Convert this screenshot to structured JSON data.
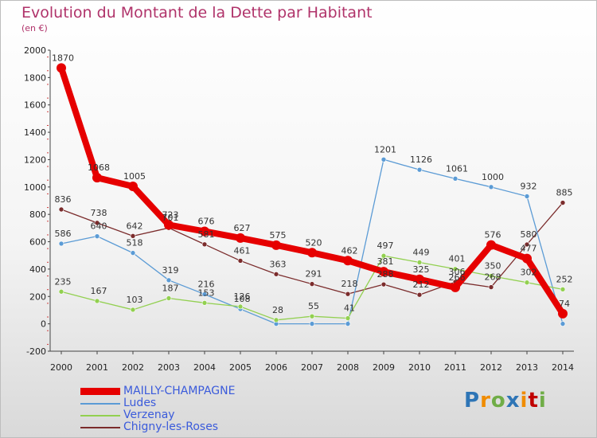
{
  "title": "Evolution du Montant de la Dette par Habitant",
  "subtitle": "(en €)",
  "brand": "Proxiti",
  "colors": {
    "title": "#b0336a",
    "MAILLY-CHAMPAGNE": "#e60000",
    "Ludes": "#5b9bd5",
    "Verzenay": "#92d050",
    "Chigny-les-Roses": "#7b2c2c"
  },
  "chart_data": {
    "type": "line",
    "title": "Evolution du Montant de la Dette par Habitant",
    "subtitle": "(en €)",
    "x": [
      "2000",
      "2001",
      "2002",
      "2003",
      "2004",
      "2005",
      "2006",
      "2007",
      "2008",
      "2009",
      "2010",
      "2011",
      "2012",
      "2013",
      "2014"
    ],
    "ylim": [
      -200,
      2000
    ],
    "yticks": [
      -200,
      0,
      200,
      400,
      600,
      800,
      1000,
      1200,
      1400,
      1600,
      1800,
      2000
    ],
    "grid": false,
    "legend": "bottom-left",
    "series": [
      {
        "name": "Chigny-les-Roses",
        "values": [
          836,
          738,
          642,
          701,
          581,
          461,
          363,
          291,
          218,
          288,
          212,
          306,
          268,
          580,
          885
        ]
      },
      {
        "name": "Ludes",
        "values": [
          586,
          640,
          518,
          319,
          216,
          108,
          0,
          0,
          0,
          1201,
          1126,
          1061,
          1000,
          932,
          0
        ]
      },
      {
        "name": "Verzenay",
        "values": [
          235,
          167,
          103,
          187,
          153,
          126,
          28,
          55,
          41,
          497,
          449,
          401,
          350,
          302,
          252
        ]
      },
      {
        "name": "MAILLY-CHAMPAGNE",
        "values": [
          1870,
          1068,
          1005,
          723,
          676,
          627,
          575,
          520,
          462,
          381,
          325,
          266,
          576,
          477,
          74
        ]
      }
    ],
    "data_labels": {
      "Chigny-les-Roses": [
        "836",
        "738",
        "642",
        "701",
        "581",
        "461",
        "363",
        "291",
        "218",
        "288",
        "212",
        "306",
        "268",
        "580",
        "885"
      ],
      "Ludes": [
        "586",
        "640",
        "518",
        "319",
        "216",
        "108",
        "",
        "",
        "",
        "1201",
        "1126",
        "1061",
        "1000",
        "932",
        ""
      ],
      "Verzenay": [
        "235",
        "167",
        "103",
        "187",
        "153",
        "126",
        "28",
        "55",
        "41",
        "497",
        "449",
        "401",
        "350",
        "302",
        "252"
      ],
      "MAILLY-CHAMPAGNE": [
        "1870",
        "1068",
        "1005",
        "723",
        "676",
        "627",
        "575",
        "520",
        "462",
        "381",
        "325",
        "266",
        "576",
        "477",
        "74"
      ]
    }
  },
  "legend": {
    "items": [
      {
        "label": "MAILLY-CHAMPAGNE",
        "series": "MAILLY-CHAMPAGNE"
      },
      {
        "label": "Ludes",
        "series": "Ludes"
      },
      {
        "label": "Verzenay",
        "series": "Verzenay"
      },
      {
        "label": "Chigny-les-Roses",
        "series": "Chigny-les-Roses"
      }
    ]
  }
}
